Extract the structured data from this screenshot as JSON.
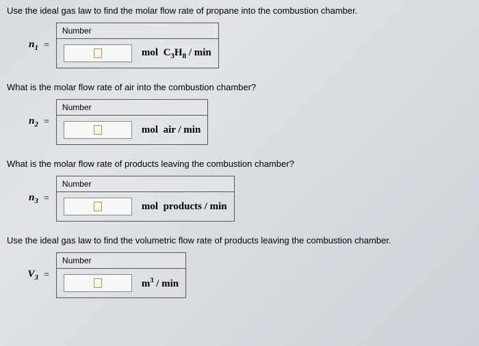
{
  "q1": {
    "prompt": "Use the ideal gas law to find the molar flow rate of propane into the combustion chamber.",
    "var_base": "n",
    "var_sub": "1",
    "header": "Number",
    "unit_html": "mol&nbsp; C<sub>3</sub>H<sub>8</sub> / min"
  },
  "q2": {
    "prompt": "What is the molar flow rate of air into the combustion chamber?",
    "var_base": "n",
    "var_sub": "2",
    "header": "Number",
    "unit_html": "mol&nbsp; air / min"
  },
  "q3": {
    "prompt": "What is the molar flow rate of products leaving the combustion chamber?",
    "var_base": "n",
    "var_sub": "3",
    "header": "Number",
    "unit_html": "mol&nbsp; products / min"
  },
  "q4": {
    "prompt": "Use the ideal gas law to find the volumetric flow rate of products leaving the combustion chamber.",
    "var_base": "V",
    "var_sub": "3",
    "header": "Number",
    "unit_html": "m<sup>3</sup> / min"
  }
}
